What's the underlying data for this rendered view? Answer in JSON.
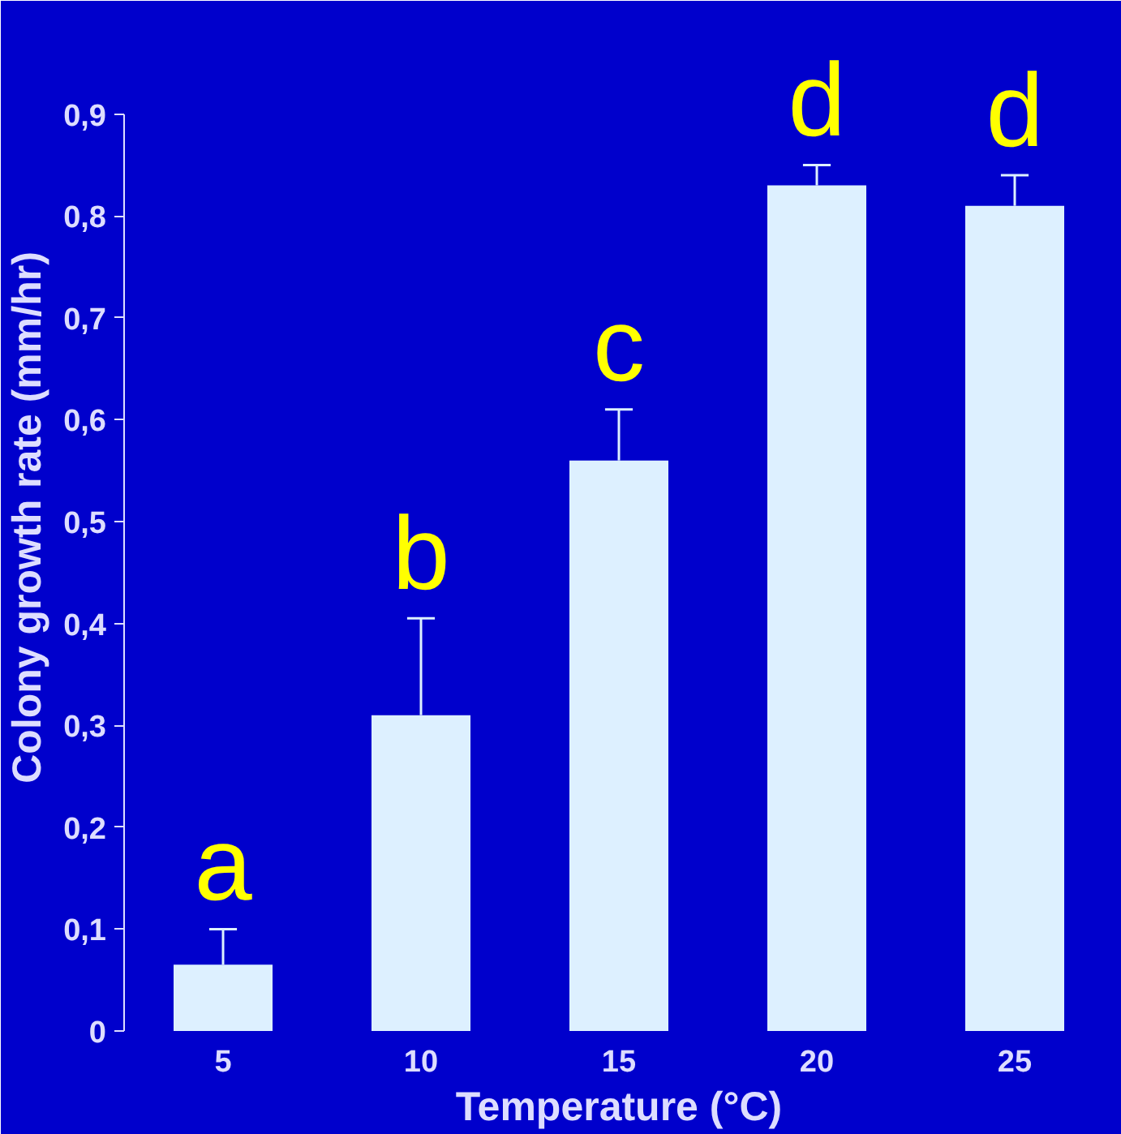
{
  "chart_data": {
    "type": "bar",
    "xlabel": "Temperature (°C)",
    "ylabel": "Colony growth rate (mm/hr)",
    "categories": [
      "5",
      "10",
      "15",
      "20",
      "25"
    ],
    "values": [
      0.065,
      0.31,
      0.56,
      0.83,
      0.81
    ],
    "errors": [
      0.035,
      0.095,
      0.05,
      0.02,
      0.03
    ],
    "color": "#ddf0ff",
    "ylim": [
      0,
      0.9
    ],
    "yticks": [
      0,
      {
        "value": 0.1,
        "label": "0,1"
      },
      {
        "value": 0.2,
        "label": "0,2"
      },
      {
        "value": 0.3,
        "label": "0,3"
      },
      {
        "value": 0.4,
        "label": "0,4"
      },
      {
        "value": 0.5,
        "label": "0,5"
      },
      {
        "value": 0.6,
        "label": "0,6"
      },
      {
        "value": 0.7,
        "label": "0,7"
      },
      {
        "value": 0.8,
        "label": "0,8"
      },
      {
        "value": 0.9,
        "label": "0,9"
      }
    ],
    "annotations": [
      {
        "text": "a",
        "x": "5",
        "y": 0.1
      },
      {
        "text": "b",
        "x": "10",
        "y": 0.405
      },
      {
        "text": "c",
        "x": "15",
        "y": 0.61
      },
      {
        "text": "d",
        "x": "20",
        "y": 0.85
      },
      {
        "text": "d",
        "x": "25",
        "y": 0.84
      }
    ],
    "grid": false
  }
}
